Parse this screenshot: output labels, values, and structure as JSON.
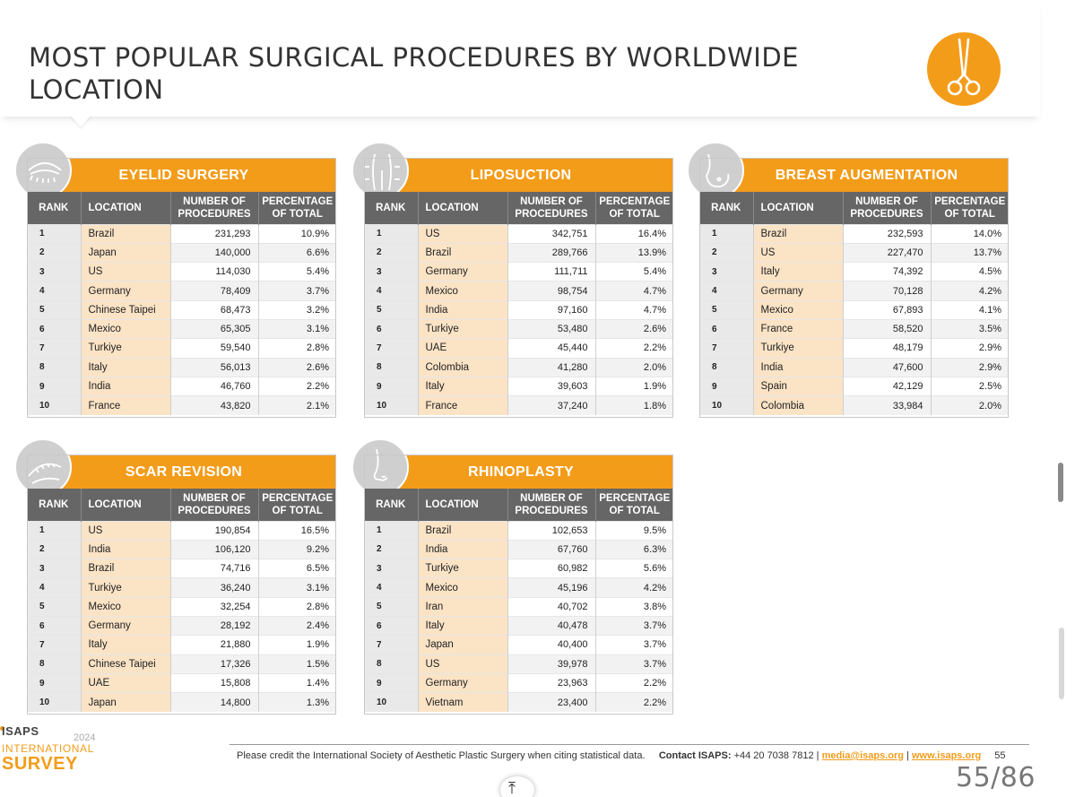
{
  "title": "MOST POPULAR SURGICAL PROCEDURES BY WORLDWIDE LOCATION",
  "header_icon": "scissors-icon",
  "accent_color": "#f39c1a",
  "columns": {
    "rank": "RANK",
    "location": "LOCATION",
    "number": "NUMBER OF PROCEDURES",
    "percentage": "PERCENTAGE OF TOTAL"
  },
  "tables": [
    {
      "name": "EYELID SURGERY",
      "icon": "eye-icon",
      "rows": [
        {
          "rank": "1",
          "location": "Brazil",
          "number": "231,293",
          "pct": "10.9%"
        },
        {
          "rank": "2",
          "location": "Japan",
          "number": "140,000",
          "pct": "6.6%"
        },
        {
          "rank": "3",
          "location": "US",
          "number": "114,030",
          "pct": "5.4%"
        },
        {
          "rank": "4",
          "location": "Germany",
          "number": "78,409",
          "pct": "3.7%"
        },
        {
          "rank": "5",
          "location": "Chinese Taipei",
          "number": "68,473",
          "pct": "3.2%"
        },
        {
          "rank": "6",
          "location": "Mexico",
          "number": "65,305",
          "pct": "3.1%"
        },
        {
          "rank": "7",
          "location": "Turkiye",
          "number": "59,540",
          "pct": "2.8%"
        },
        {
          "rank": "8",
          "location": "Italy",
          "number": "56,013",
          "pct": "2.6%"
        },
        {
          "rank": "9",
          "location": "India",
          "number": "46,760",
          "pct": "2.2%"
        },
        {
          "rank": "10",
          "location": "France",
          "number": "43,820",
          "pct": "2.1%"
        }
      ]
    },
    {
      "name": "LIPOSUCTION",
      "icon": "body-contour-icon",
      "rows": [
        {
          "rank": "1",
          "location": "US",
          "number": "342,751",
          "pct": "16.4%"
        },
        {
          "rank": "2",
          "location": "Brazil",
          "number": "289,766",
          "pct": "13.9%"
        },
        {
          "rank": "3",
          "location": "Germany",
          "number": "111,711",
          "pct": "5.4%"
        },
        {
          "rank": "4",
          "location": "Mexico",
          "number": "98,754",
          "pct": "4.7%"
        },
        {
          "rank": "5",
          "location": "India",
          "number": "97,160",
          "pct": "4.7%"
        },
        {
          "rank": "6",
          "location": "Turkiye",
          "number": "53,480",
          "pct": "2.6%"
        },
        {
          "rank": "7",
          "location": "UAE",
          "number": "45,440",
          "pct": "2.2%"
        },
        {
          "rank": "8",
          "location": "Colombia",
          "number": "41,280",
          "pct": "2.0%"
        },
        {
          "rank": "9",
          "location": "Italy",
          "number": "39,603",
          "pct": "1.9%"
        },
        {
          "rank": "10",
          "location": "France",
          "number": "37,240",
          "pct": "1.8%"
        }
      ]
    },
    {
      "name": "BREAST AUGMENTATION",
      "icon": "breast-icon",
      "rows": [
        {
          "rank": "1",
          "location": "Brazil",
          "number": "232,593",
          "pct": "14.0%"
        },
        {
          "rank": "2",
          "location": "US",
          "number": "227,470",
          "pct": "13.7%"
        },
        {
          "rank": "3",
          "location": "Italy",
          "number": "74,392",
          "pct": "4.5%"
        },
        {
          "rank": "4",
          "location": "Germany",
          "number": "70,128",
          "pct": "4.2%"
        },
        {
          "rank": "5",
          "location": "Mexico",
          "number": "67,893",
          "pct": "4.1%"
        },
        {
          "rank": "6",
          "location": "France",
          "number": "58,520",
          "pct": "3.5%"
        },
        {
          "rank": "7",
          "location": "Turkiye",
          "number": "48,179",
          "pct": "2.9%"
        },
        {
          "rank": "8",
          "location": "India",
          "number": "47,600",
          "pct": "2.9%"
        },
        {
          "rank": "9",
          "location": "Spain",
          "number": "42,129",
          "pct": "2.5%"
        },
        {
          "rank": "10",
          "location": "Colombia",
          "number": "33,984",
          "pct": "2.0%"
        }
      ]
    },
    {
      "name": "SCAR REVISION",
      "icon": "scar-icon",
      "rows": [
        {
          "rank": "1",
          "location": "US",
          "number": "190,854",
          "pct": "16.5%"
        },
        {
          "rank": "2",
          "location": "India",
          "number": "106,120",
          "pct": "9.2%"
        },
        {
          "rank": "3",
          "location": "Brazil",
          "number": "74,716",
          "pct": "6.5%"
        },
        {
          "rank": "4",
          "location": "Turkiye",
          "number": "36,240",
          "pct": "3.1%"
        },
        {
          "rank": "5",
          "location": "Mexico",
          "number": "32,254",
          "pct": "2.8%"
        },
        {
          "rank": "6",
          "location": "Germany",
          "number": "28,192",
          "pct": "2.4%"
        },
        {
          "rank": "7",
          "location": "Italy",
          "number": "21,880",
          "pct": "1.9%"
        },
        {
          "rank": "8",
          "location": "Chinese Taipei",
          "number": "17,326",
          "pct": "1.5%"
        },
        {
          "rank": "9",
          "location": "UAE",
          "number": "15,808",
          "pct": "1.4%"
        },
        {
          "rank": "10",
          "location": "Japan",
          "number": "14,800",
          "pct": "1.3%"
        }
      ]
    },
    {
      "name": "RHINOPLASTY",
      "icon": "nose-icon",
      "rows": [
        {
          "rank": "1",
          "location": "Brazil",
          "number": "102,653",
          "pct": "9.5%"
        },
        {
          "rank": "2",
          "location": "India",
          "number": "67,760",
          "pct": "6.3%"
        },
        {
          "rank": "3",
          "location": "Turkiye",
          "number": "60,982",
          "pct": "5.6%"
        },
        {
          "rank": "4",
          "location": "Mexico",
          "number": "45,196",
          "pct": "4.2%"
        },
        {
          "rank": "5",
          "location": "Iran",
          "number": "40,702",
          "pct": "3.8%"
        },
        {
          "rank": "6",
          "location": "Italy",
          "number": "40,478",
          "pct": "3.7%"
        },
        {
          "rank": "7",
          "location": "Japan",
          "number": "40,400",
          "pct": "3.7%"
        },
        {
          "rank": "8",
          "location": "US",
          "number": "39,978",
          "pct": "3.7%"
        },
        {
          "rank": "9",
          "location": "Germany",
          "number": "23,963",
          "pct": "2.2%"
        },
        {
          "rank": "10",
          "location": "Vietnam",
          "number": "23,400",
          "pct": "2.2%"
        }
      ]
    }
  ],
  "footer": {
    "credit": "Please credit the International Society of Aesthetic Plastic Surgery when citing statistical data.",
    "contact_label": "Contact ISAPS:",
    "phone": "+44 20 7038 7812",
    "sep": "|",
    "email": "media@isaps.org",
    "website": "www.isaps.org",
    "page_number": "55"
  },
  "logo": {
    "isaps": "ISAPS",
    "year": "2024",
    "international": "INTERNATIONAL",
    "survey": "SURVEY"
  },
  "pager": "55/86",
  "scroll_top_icon": "chevron-up-bar-icon"
}
